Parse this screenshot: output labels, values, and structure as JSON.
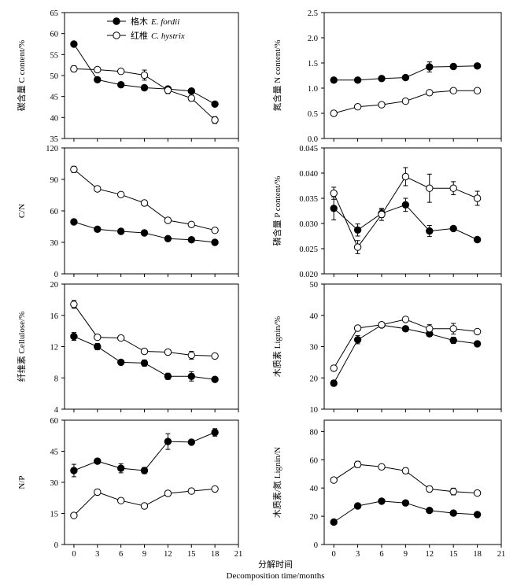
{
  "xaxis": {
    "title_zh": "分解时间",
    "title_en": "Decomposition time/months",
    "ticks": [
      "0",
      "3",
      "6",
      "9",
      "12",
      "15",
      "18",
      "21"
    ]
  },
  "chart_data": [
    {
      "type": "line",
      "ylabel": "碳含量 C content/%",
      "x": [
        0,
        3,
        6,
        9,
        12,
        15,
        18
      ],
      "xlim": [
        -1.2,
        21
      ],
      "ylim": [
        35,
        65
      ],
      "yticks": [
        "35",
        "40",
        "45",
        "50",
        "55",
        "60",
        "65"
      ],
      "grid": false,
      "legend": "top-left",
      "series": [
        {
          "name_zh": "格木",
          "name_latin": "E. fordii",
          "marker": "filled",
          "values": [
            57.5,
            49.0,
            47.8,
            47.1,
            46.8,
            46.3,
            43.2
          ],
          "err": [
            0.5,
            0.4,
            0.4,
            0.5,
            0.4,
            0.3,
            0.4
          ]
        },
        {
          "name_zh": "红椎",
          "name_latin": "C. hystrix",
          "marker": "open",
          "values": [
            51.6,
            51.4,
            51.0,
            50.1,
            46.5,
            44.6,
            39.4
          ],
          "err": [
            0.7,
            0.4,
            0.4,
            1.2,
            0.8,
            0.7,
            0.8
          ]
        }
      ]
    },
    {
      "type": "line",
      "ylabel": "氮含量 N content/%",
      "x": [
        0,
        3,
        6,
        9,
        12,
        15,
        18
      ],
      "xlim": [
        -1.2,
        21
      ],
      "ylim": [
        0,
        2.5
      ],
      "yticks": [
        "0.0",
        "0.5",
        "1.0",
        "1.5",
        "2.0",
        "2.5"
      ],
      "grid": false,
      "series": [
        {
          "marker": "filled",
          "values": [
            1.16,
            1.16,
            1.19,
            1.21,
            1.42,
            1.43,
            1.44
          ],
          "err": [
            0.02,
            0.02,
            0.02,
            0.02,
            0.1,
            0.03,
            0.03
          ]
        },
        {
          "marker": "open",
          "values": [
            0.5,
            0.63,
            0.67,
            0.74,
            0.91,
            0.95,
            0.95
          ],
          "err": [
            0.02,
            0.02,
            0.02,
            0.03,
            0.05,
            0.03,
            0.02
          ]
        }
      ]
    },
    {
      "type": "line",
      "ylabel": "C/N",
      "x": [
        0,
        3,
        6,
        9,
        12,
        15,
        18
      ],
      "xlim": [
        -1.2,
        21
      ],
      "ylim": [
        0,
        120
      ],
      "yticks": [
        "0",
        "30",
        "60",
        "90",
        "120"
      ],
      "grid": false,
      "series": [
        {
          "marker": "filled",
          "values": [
            49.5,
            42.5,
            40.5,
            39.0,
            33.5,
            32.5,
            30.0
          ],
          "err": [
            1.0,
            1.0,
            1.0,
            1.0,
            1.0,
            1.0,
            1.0
          ]
        },
        {
          "marker": "open",
          "values": [
            99.5,
            81.0,
            75.5,
            67.5,
            51.0,
            47.0,
            41.5
          ],
          "err": [
            3.0,
            2.0,
            2.0,
            2.5,
            1.5,
            1.0,
            1.5
          ]
        }
      ]
    },
    {
      "type": "line",
      "ylabel": "磷含量 P content/%",
      "x": [
        0,
        3,
        6,
        9,
        12,
        15,
        18
      ],
      "xlim": [
        -1.2,
        21
      ],
      "ylim": [
        0.02,
        0.045
      ],
      "yticks": [
        "0.020",
        "0.025",
        "0.030",
        "0.035",
        "0.040",
        "0.045"
      ],
      "grid": false,
      "series": [
        {
          "marker": "filled",
          "values": [
            0.033,
            0.0287,
            0.032,
            0.0337,
            0.0285,
            0.029,
            0.0268
          ],
          "err": [
            0.0023,
            0.0012,
            0.0008,
            0.0013,
            0.0011,
            0.0003,
            0.0005
          ]
        },
        {
          "marker": "open",
          "values": [
            0.036,
            0.0253,
            0.0318,
            0.0393,
            0.037,
            0.037,
            0.035
          ],
          "err": [
            0.0012,
            0.0013,
            0.0012,
            0.0018,
            0.0028,
            0.0013,
            0.0014
          ]
        }
      ]
    },
    {
      "type": "line",
      "ylabel": "纤维素 Cellulose/%",
      "x": [
        0,
        3,
        6,
        9,
        12,
        15,
        18
      ],
      "xlim": [
        -1.2,
        21
      ],
      "ylim": [
        4,
        20
      ],
      "yticks": [
        "4",
        "8",
        "12",
        "16",
        "20"
      ],
      "grid": false,
      "series": [
        {
          "marker": "filled",
          "values": [
            13.3,
            12.0,
            10.0,
            9.9,
            8.2,
            8.2,
            7.8
          ],
          "err": [
            0.5,
            0.4,
            0.2,
            0.4,
            0.4,
            0.6,
            0.3
          ]
        },
        {
          "marker": "open",
          "values": [
            17.4,
            13.2,
            13.1,
            11.4,
            11.3,
            10.9,
            10.8
          ],
          "err": [
            0.5,
            0.2,
            0.2,
            0.3,
            0.2,
            0.5,
            0.2
          ]
        }
      ]
    },
    {
      "type": "line",
      "ylabel": "木质素 Lignin/%",
      "x": [
        0,
        3,
        6,
        9,
        12,
        15,
        18
      ],
      "xlim": [
        -1.2,
        21
      ],
      "ylim": [
        10,
        50
      ],
      "yticks": [
        "10",
        "20",
        "30",
        "40",
        "50"
      ],
      "grid": false,
      "series": [
        {
          "marker": "filled",
          "values": [
            18.3,
            32.2,
            36.9,
            35.7,
            34.1,
            32.0,
            30.9
          ],
          "err": [
            0.9,
            1.3,
            0.7,
            0.6,
            0.8,
            1.0,
            0.8
          ]
        },
        {
          "marker": "open",
          "values": [
            23.1,
            35.9,
            37.0,
            38.7,
            35.7,
            35.7,
            34.8
          ],
          "err": [
            0.8,
            0.5,
            0.6,
            0.5,
            1.3,
            1.7,
            0.5
          ]
        }
      ]
    },
    {
      "type": "line",
      "ylabel": "N/P",
      "x": [
        0,
        3,
        6,
        9,
        12,
        15,
        18
      ],
      "xlim": [
        -1.2,
        21
      ],
      "ylim": [
        0,
        60
      ],
      "yticks": [
        "0",
        "15",
        "30",
        "45",
        "60"
      ],
      "grid": false,
      "series": [
        {
          "marker": "filled",
          "values": [
            35.7,
            40.2,
            36.8,
            35.7,
            49.7,
            49.4,
            54.1
          ],
          "err": [
            3.0,
            1.2,
            2.2,
            1.5,
            3.8,
            0.6,
            1.8
          ]
        },
        {
          "marker": "open",
          "values": [
            14.0,
            25.3,
            21.2,
            18.6,
            24.7,
            25.8,
            26.8
          ],
          "err": [
            0.6,
            1.3,
            0.8,
            0.6,
            0.6,
            1.1,
            0.8
          ]
        }
      ]
    },
    {
      "type": "line",
      "ylabel": "木质素/氮 Lignin/N",
      "x": [
        0,
        3,
        6,
        9,
        12,
        15,
        18
      ],
      "xlim": [
        -1.2,
        21
      ],
      "ylim": [
        0,
        88
      ],
      "yticks": [
        "0",
        "20",
        "40",
        "60",
        "80"
      ],
      "grid": false,
      "series": [
        {
          "marker": "filled",
          "values": [
            15.9,
            27.3,
            30.7,
            29.4,
            24.1,
            22.2,
            21.2
          ],
          "err": [
            0.8,
            0.8,
            0.8,
            0.6,
            0.7,
            0.6,
            0.6
          ]
        },
        {
          "marker": "open",
          "values": [
            45.6,
            56.7,
            55.0,
            52.2,
            39.3,
            37.5,
            36.4
          ],
          "err": [
            1.2,
            2.2,
            1.4,
            2.0,
            2.0,
            2.4,
            1.0
          ]
        }
      ]
    }
  ]
}
